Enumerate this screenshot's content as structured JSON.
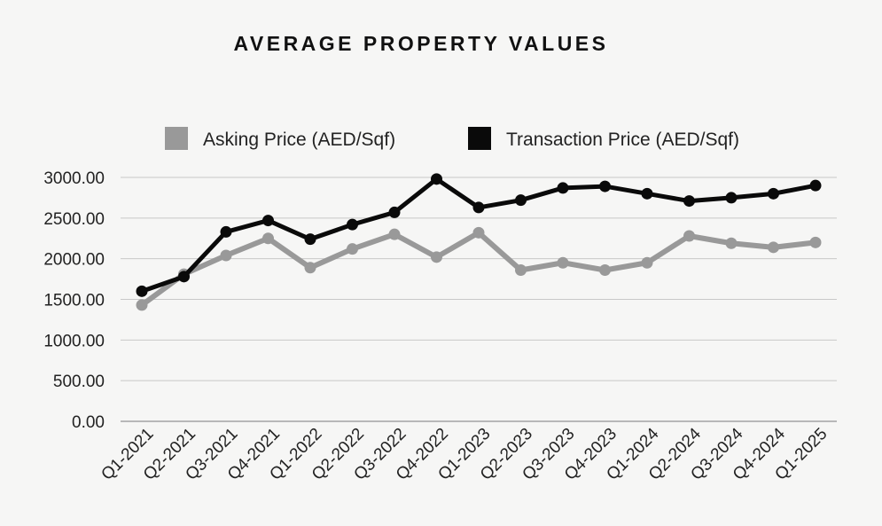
{
  "chart_data": {
    "type": "line",
    "title": "AVERAGE PROPERTY VALUES",
    "xlabel": "",
    "ylabel": "",
    "categories": [
      "Q1-2021",
      "Q2-2021",
      "Q3-2021",
      "Q4-2021",
      "Q1-2022",
      "Q2-2022",
      "Q3-2022",
      "Q4-2022",
      "Q1-2023",
      "Q2-2023",
      "Q3-2023",
      "Q4-2023",
      "Q1-2024",
      "Q2-2024",
      "Q3-2024",
      "Q4-2024",
      "Q1-2025"
    ],
    "y_ticks": [
      "0.00",
      "500.00",
      "1000.00",
      "1500.00",
      "2000.00",
      "2500.00",
      "3000.00"
    ],
    "ylim": [
      0,
      3000
    ],
    "grid": true,
    "legend_position": "top",
    "series": [
      {
        "name": "Asking Price (AED/Sqf)",
        "color": "#999999",
        "values": [
          1430,
          1810,
          2040,
          2250,
          1890,
          2120,
          2300,
          2020,
          2320,
          1860,
          1950,
          1860,
          1950,
          2280,
          2190,
          2140,
          2200
        ]
      },
      {
        "name": "Transaction Price (AED/Sqf)",
        "color": "#0a0a0a",
        "values": [
          1600,
          1780,
          2330,
          2470,
          2240,
          2420,
          2570,
          2980,
          2630,
          2720,
          2870,
          2890,
          2800,
          2710,
          2750,
          2800,
          2900
        ]
      }
    ]
  }
}
